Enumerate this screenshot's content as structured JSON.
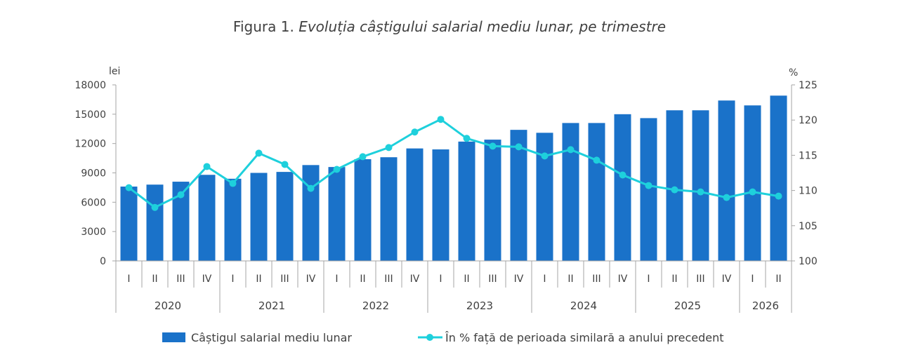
{
  "title": {
    "prefix": "Figura 1.",
    "main": "Evoluția câștigului salarial mediu lunar, pe trimestre"
  },
  "colors": {
    "bar": "#1A72C9",
    "line": "#1ED0DC",
    "axis": "#A6A6A6",
    "text": "#404040"
  },
  "chart_data": {
    "type": "bar",
    "title": "Evoluția câștigului salarial mediu lunar, pe trimestre",
    "categories": [
      "I",
      "II",
      "III",
      "IV",
      "I",
      "II",
      "III",
      "IV",
      "I",
      "II",
      "III",
      "IV",
      "I",
      "II",
      "III",
      "IV",
      "I",
      "II",
      "III",
      "IV",
      "I",
      "II",
      "III",
      "IV",
      "I",
      "II"
    ],
    "groups": [
      {
        "label": "2020",
        "count": 4
      },
      {
        "label": "2021",
        "count": 4
      },
      {
        "label": "2022",
        "count": 4
      },
      {
        "label": "2023",
        "count": 4
      },
      {
        "label": "2024",
        "count": 4
      },
      {
        "label": "2025",
        "count": 4
      },
      {
        "label": "2026",
        "count": 2
      }
    ],
    "left_axis": {
      "unit": "lei",
      "min": 0,
      "max": 18000,
      "ticks": [
        0,
        3000,
        6000,
        9000,
        12000,
        15000,
        18000
      ]
    },
    "right_axis": {
      "unit": "%",
      "min": 100,
      "max": 125,
      "ticks": [
        100,
        105,
        110,
        115,
        120,
        125
      ]
    },
    "series": [
      {
        "name": "Câștigul salarial mediu lunar",
        "type": "bar",
        "axis": "left",
        "values": [
          7600,
          7800,
          8100,
          8800,
          8400,
          9000,
          9100,
          9800,
          9600,
          10400,
          10600,
          11500,
          11400,
          12200,
          12400,
          13400,
          13100,
          14100,
          14100,
          15000,
          14600,
          15400,
          15400,
          16400,
          15900,
          16900
        ]
      },
      {
        "name": "În % față de perioada similară a anului precedent",
        "type": "line",
        "axis": "right",
        "values": [
          110.4,
          107.6,
          109.4,
          113.4,
          111.0,
          115.3,
          113.7,
          110.3,
          113.0,
          114.8,
          116.1,
          118.3,
          120.1,
          117.4,
          116.3,
          116.2,
          114.9,
          115.8,
          114.3,
          112.2,
          110.7,
          110.1,
          109.8,
          109.0,
          109.8,
          109.2
        ]
      }
    ],
    "grid": false,
    "legend": "bottom"
  }
}
